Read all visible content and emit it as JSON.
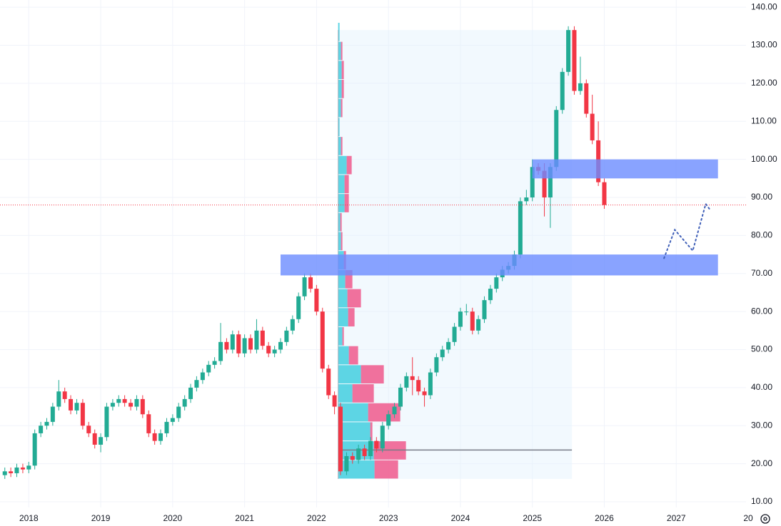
{
  "chart_data": {
    "type": "candlestick",
    "xlim": [
      2017.6,
      2027.97
    ],
    "ylim": [
      8.5,
      141.9
    ],
    "xticks": [
      2018,
      2019,
      2020,
      2021,
      2022,
      2023,
      2024,
      2025,
      2026,
      2027,
      {
        "value": 2028,
        "label": "20"
      }
    ],
    "yticks": [
      {
        "value": 10,
        "label": "10.00"
      },
      {
        "value": 20,
        "label": "20.00"
      },
      {
        "value": 30,
        "label": "30.00"
      },
      {
        "value": 40,
        "label": "40.00"
      },
      {
        "value": 50,
        "label": "50.00"
      },
      {
        "value": 60,
        "label": "60.00"
      },
      {
        "value": 70,
        "label": "70.00"
      },
      {
        "value": 80,
        "label": "80.00"
      },
      {
        "value": 90,
        "label": "90.00"
      },
      {
        "value": 100,
        "label": "100.00"
      },
      {
        "value": 110,
        "label": "110.00"
      },
      {
        "value": 120,
        "label": "120.00"
      },
      {
        "value": 130,
        "label": "130.00"
      },
      {
        "value": 140,
        "label": "140.00"
      }
    ],
    "grid": true,
    "up_color": "#22ab94",
    "down_color": "#f23645",
    "x": [
      2017.667,
      2017.75,
      2017.833,
      2017.917,
      2018.0,
      2018.083,
      2018.167,
      2018.25,
      2018.333,
      2018.417,
      2018.5,
      2018.583,
      2018.667,
      2018.75,
      2018.833,
      2018.917,
      2019.0,
      2019.083,
      2019.167,
      2019.25,
      2019.333,
      2019.417,
      2019.5,
      2019.583,
      2019.667,
      2019.75,
      2019.833,
      2019.917,
      2020.0,
      2020.083,
      2020.167,
      2020.25,
      2020.333,
      2020.417,
      2020.5,
      2020.583,
      2020.667,
      2020.75,
      2020.833,
      2020.917,
      2021.0,
      2021.083,
      2021.167,
      2021.25,
      2021.333,
      2021.417,
      2021.5,
      2021.583,
      2021.667,
      2021.75,
      2021.833,
      2021.917,
      2022.0,
      2022.083,
      2022.167,
      2022.25,
      2022.333,
      2022.417,
      2022.5,
      2022.583,
      2022.667,
      2022.75,
      2022.833,
      2022.917,
      2023.0,
      2023.083,
      2023.167,
      2023.25,
      2023.333,
      2023.417,
      2023.5,
      2023.583,
      2023.667,
      2023.75,
      2023.833,
      2023.917,
      2024.0,
      2024.083,
      2024.167,
      2024.25,
      2024.333,
      2024.417,
      2024.5,
      2024.583,
      2024.667,
      2024.75,
      2024.833,
      2024.917,
      2025.0,
      2025.083,
      2025.167,
      2025.25,
      2025.333,
      2025.417,
      2025.5,
      2025.583,
      2025.667,
      2025.75,
      2025.833,
      2025.917,
      2026.0
    ],
    "open": [
      17,
      18,
      17.5,
      19,
      18.5,
      19.5,
      28,
      30,
      31,
      35,
      39,
      37,
      34,
      36,
      30,
      28,
      25,
      27,
      35,
      36,
      37,
      36,
      35,
      37,
      33,
      28,
      26,
      28,
      31,
      32,
      35,
      37,
      40,
      42,
      44,
      46,
      47,
      52,
      50,
      54,
      49,
      53,
      50,
      55,
      51,
      49,
      50,
      52,
      55,
      58,
      64,
      69,
      66,
      60,
      45,
      38,
      35,
      18,
      22,
      21,
      24,
      22,
      26,
      24,
      30,
      33,
      35,
      40,
      43,
      42,
      39,
      38,
      44,
      48,
      50,
      52,
      56,
      60,
      60,
      55,
      58,
      63,
      66,
      69,
      71,
      72,
      75,
      89,
      90,
      98,
      97,
      90,
      98,
      113,
      123,
      134,
      118,
      120,
      112,
      105,
      94
    ],
    "high": [
      19,
      19,
      20,
      20,
      20.5,
      29,
      31,
      32,
      36,
      42,
      40,
      38,
      37,
      37,
      31,
      29,
      28,
      36,
      37,
      38,
      38,
      37,
      38,
      38,
      34,
      29,
      29,
      32,
      33,
      36,
      38,
      41,
      43,
      45,
      47,
      48,
      57,
      53,
      55,
      55,
      54,
      54,
      58,
      56,
      52,
      51,
      53,
      56,
      59,
      65,
      70,
      70,
      67,
      61,
      46,
      39,
      36,
      23,
      23,
      25,
      25,
      27,
      27,
      31,
      34,
      36,
      41,
      44,
      48,
      43,
      40,
      45,
      49,
      51,
      53,
      57,
      61,
      62,
      61,
      59,
      64,
      67,
      70,
      72,
      73,
      76,
      90,
      92,
      100,
      99,
      99,
      99,
      114,
      124,
      135,
      135,
      127,
      121,
      117,
      110,
      95
    ],
    "low": [
      16,
      16.5,
      16.5,
      17.5,
      17.5,
      18.5,
      27,
      29,
      30,
      34,
      36,
      33,
      33,
      29,
      27,
      24,
      23,
      26,
      34,
      35,
      35,
      34,
      34,
      32,
      27,
      25,
      25,
      27,
      30,
      31,
      34,
      36,
      39,
      41,
      43,
      45,
      46,
      49,
      49,
      48,
      48,
      49,
      49,
      50,
      48,
      48,
      49,
      51,
      54,
      57,
      63,
      65,
      59,
      44,
      37,
      33,
      17,
      17,
      20,
      20,
      21,
      21,
      23,
      23,
      29,
      32,
      34,
      39,
      38,
      38,
      35,
      37,
      43,
      47,
      49,
      51,
      55,
      59,
      54,
      54,
      57,
      62,
      65,
      68,
      70,
      71,
      74,
      88,
      89,
      96,
      85,
      82,
      97,
      112,
      122,
      117,
      117,
      111,
      104,
      93,
      87
    ],
    "close": [
      18,
      17.5,
      19,
      18.5,
      19.5,
      28,
      30,
      31,
      35,
      39,
      37,
      34,
      36,
      30,
      28,
      25,
      27,
      35,
      36,
      37,
      36,
      35,
      37,
      33,
      28,
      26,
      28,
      31,
      32,
      35,
      37,
      40,
      42,
      44,
      46,
      47,
      52,
      50,
      54,
      49,
      53,
      50,
      55,
      51,
      49,
      50,
      52,
      55,
      58,
      64,
      69,
      66,
      60,
      45,
      38,
      35,
      18,
      22,
      21,
      24,
      22,
      26,
      24,
      30,
      33,
      35,
      40,
      43,
      42,
      39,
      38,
      44,
      48,
      50,
      52,
      56,
      60,
      60,
      55,
      58,
      63,
      66,
      69,
      71,
      72,
      75,
      89,
      90,
      98,
      97,
      90,
      98,
      113,
      123,
      134,
      118,
      120,
      112,
      105,
      94,
      88
    ],
    "last_price": 88,
    "last_price_color": "#f23645",
    "volume_profile": {
      "range": [
        2022.3,
        2025.55
      ],
      "price_top": 134,
      "bins": [
        16,
        21,
        26,
        31,
        36,
        41,
        46,
        51,
        56,
        61,
        66,
        71,
        76,
        81,
        86,
        91,
        96,
        101,
        106,
        111,
        116,
        121,
        126,
        131,
        136
      ],
      "up": [
        51,
        50,
        45,
        42,
        20,
        32,
        15,
        6,
        14,
        13,
        10,
        8,
        4,
        3,
        9,
        9,
        12,
        4,
        2,
        4,
        5,
        5,
        4,
        2
      ],
      "down": [
        33,
        45,
        3,
        45,
        30,
        32,
        13,
        2,
        9,
        19,
        10,
        3,
        2,
        2,
        6,
        6,
        7,
        2,
        0,
        2,
        3,
        3,
        2,
        0
      ],
      "up_color": "#4dd0e1",
      "down_color": "#f06292",
      "poc": 23.6
    },
    "zones": [
      {
        "x": [
          2021.5,
          2027.58
        ],
        "y": [
          69.5,
          75
        ]
      },
      {
        "x": [
          2025.0,
          2027.58
        ],
        "y": [
          95,
          100
        ]
      }
    ],
    "zone_color": "#6b8cff",
    "projection": {
      "x": [
        2026.83,
        2026.98,
        2027.23,
        2027.41,
        2027.48
      ],
      "y": [
        74,
        81.5,
        76,
        88.3,
        86.5
      ],
      "color": "#3f5fb8"
    }
  }
}
